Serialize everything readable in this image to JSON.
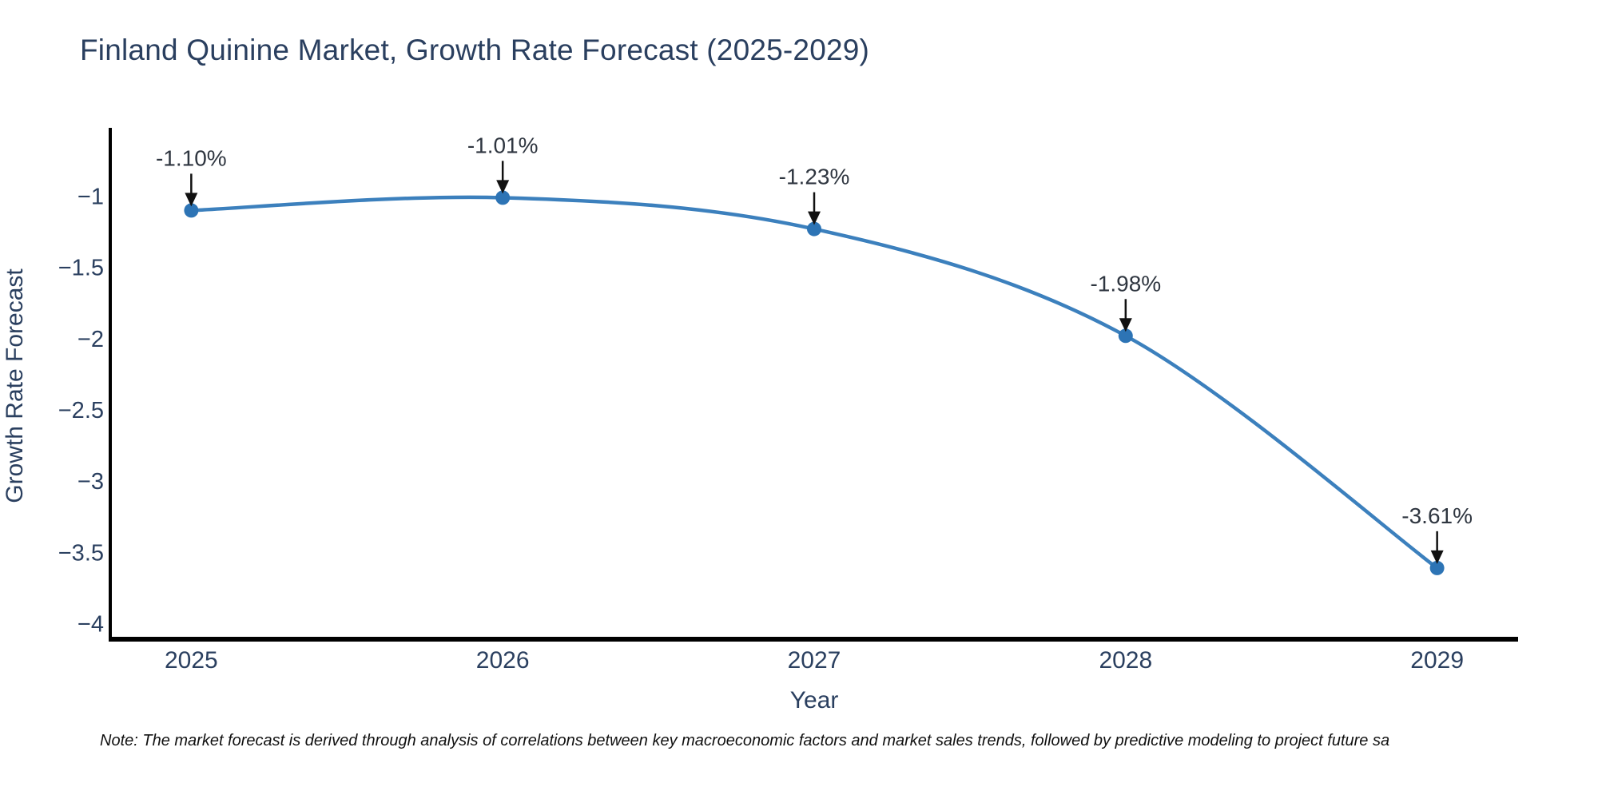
{
  "chart": {
    "title": "Finland Quinine Market, Growth Rate Forecast (2025-2029)",
    "note": "Note: The market forecast is derived through analysis of correlations between key macroeconomic factors and market sales trends, followed by predictive modeling to project future sa"
  },
  "chart_data": {
    "type": "line",
    "title": "Finland Quinine Market, Growth Rate Forecast (2025-2029)",
    "xlabel": "Year",
    "ylabel": "Growth Rate Forecast",
    "line_shape": "spline",
    "grid": false,
    "legend": false,
    "x": [
      2025,
      2026,
      2027,
      2028,
      2029
    ],
    "y": [
      -1.1,
      -1.01,
      -1.23,
      -1.98,
      -3.61
    ],
    "point_labels": [
      "-1.10%",
      "-1.01%",
      "-1.23%",
      "-1.98%",
      "-3.61%"
    ],
    "x_ticks": [
      "2025",
      "2026",
      "2027",
      "2028",
      "2029"
    ],
    "x_tick_values": [
      2025,
      2026,
      2027,
      2028,
      2029
    ],
    "y_ticks": [
      "−1",
      "−1.5",
      "−2",
      "−2.5",
      "−3",
      "−3.5",
      "−4"
    ],
    "y_tick_values": [
      -1,
      -1.5,
      -2,
      -2.5,
      -3,
      -3.5,
      -4
    ],
    "xlim": [
      2024.74,
      2029.26
    ],
    "ylim": [
      -4.11,
      -0.52
    ],
    "colors": {
      "line": "#3c80bd",
      "marker": "#2d74b5",
      "axis_line": "#000000",
      "tick_text": "#2a3f5f",
      "axis_title_text": "#2a3f5f",
      "annotation_text": "#2f3640",
      "arrow": "#111111",
      "background": "#ffffff"
    }
  }
}
